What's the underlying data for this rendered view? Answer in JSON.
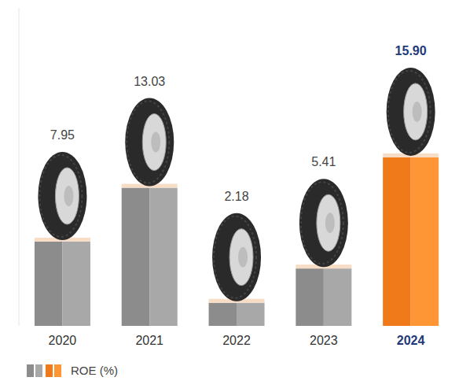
{
  "chart_data": {
    "type": "bar",
    "categories": [
      "2020",
      "2021",
      "2022",
      "2023",
      "2024"
    ],
    "series": [
      {
        "name": "ROE (%)",
        "values": [
          7.95,
          13.03,
          2.18,
          5.41,
          15.9
        ],
        "value_labels": [
          "7.95",
          "13.03",
          "2.18",
          "5.41",
          "15.90"
        ],
        "colors": [
          "#8c8c8c",
          "#8c8c8c",
          "#8c8c8c",
          "#8c8c8c",
          "#f07a1a"
        ]
      }
    ],
    "ylim": [
      0,
      30
    ],
    "data_labels": true,
    "tick_labels": "x",
    "legend": "bottom-left"
  }
}
